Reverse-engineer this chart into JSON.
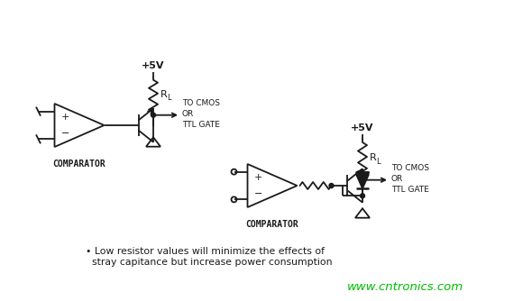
{
  "bg_color": "#ffffff",
  "line_color": "#1a1a1a",
  "text_color": "#1a1a1a",
  "watermark_color": "#00bb00",
  "watermark": "www.cntronics.com",
  "label_comparator1": "COMPARATOR",
  "label_comparator2": "COMPARATOR",
  "label_5v1": "+5V",
  "label_5v2": "+5V",
  "label_tocmos1": "TO CMOS\nOR\nTTL GATE",
  "label_tocmos2": "TO CMOS\nOR\nTTL GATE",
  "note_line1": "• Low resistor values will minimize the effects of",
  "note_line2": "  stray capitance but increase power consumption",
  "note_fontsize": 7.8,
  "watermark_fontsize": 9.5
}
